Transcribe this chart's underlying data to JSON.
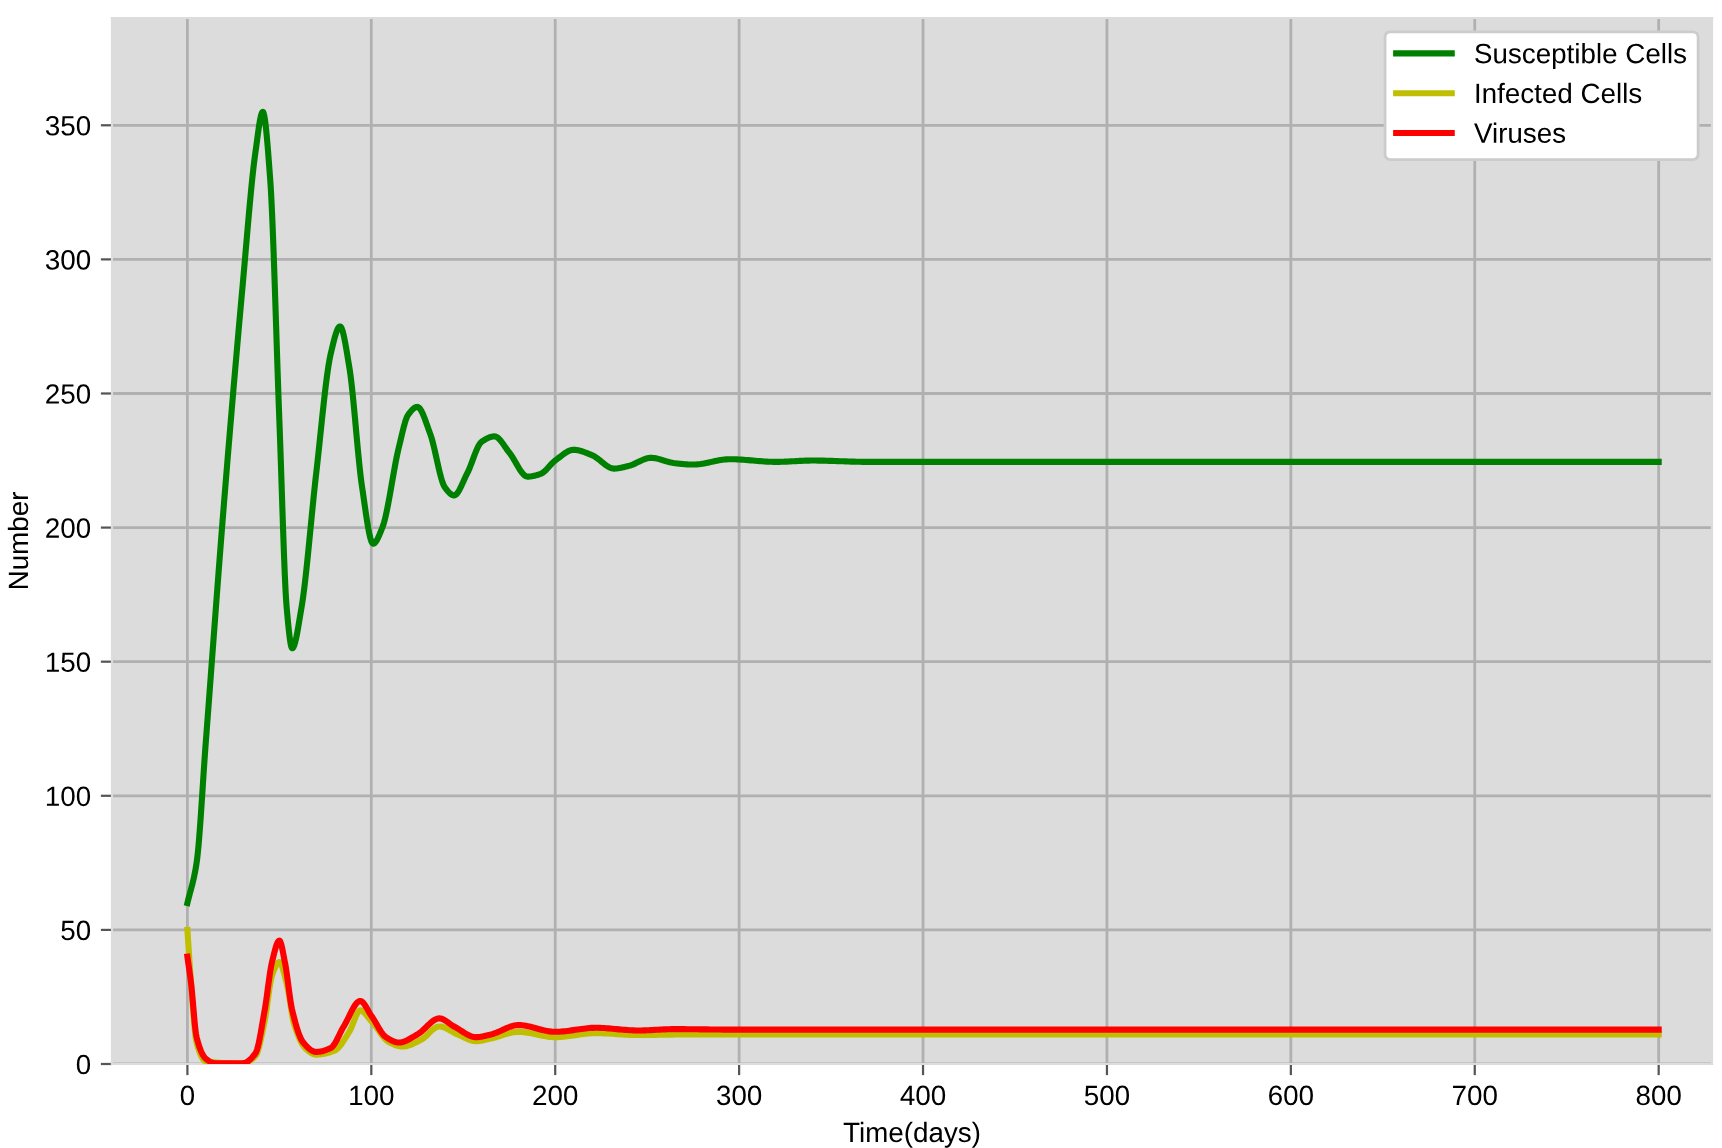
{
  "chart_data": {
    "type": "line",
    "xlabel": "Time(days)",
    "ylabel": "Number",
    "xlim": [
      -41,
      829
    ],
    "ylim": [
      0,
      390
    ],
    "xticks": [
      0,
      100,
      200,
      300,
      400,
      500,
      600,
      700,
      800
    ],
    "yticks": [
      0,
      50,
      100,
      150,
      200,
      250,
      300,
      350
    ],
    "grid": true,
    "legend": "top right",
    "series": [
      {
        "name": "Susceptible Cells",
        "color": "#008000",
        "x": [
          0,
          5,
          10,
          20,
          30,
          37,
          41,
          45,
          50,
          54,
          57,
          62,
          70,
          78,
          83,
          88,
          95,
          101,
          106,
          115,
          120,
          125,
          132,
          140,
          145,
          152,
          160,
          167,
          175,
          185,
          192,
          200,
          210,
          220,
          232,
          240,
          252,
          265,
          275,
          295,
          320,
          340,
          370,
          400,
          800
        ],
        "values": [
          60,
          75,
          120,
          210,
          290,
          340,
          355,
          330,
          240,
          170,
          155,
          170,
          220,
          265,
          275,
          260,
          215,
          194,
          200,
          230,
          242,
          245,
          235,
          215,
          212,
          220,
          232,
          234,
          228,
          219,
          220,
          225,
          229,
          227,
          222,
          223,
          226,
          224,
          223.5,
          225.5,
          224.5,
          225,
          224.5,
          224.5,
          224.5
        ]
      },
      {
        "name": "Infected Cells",
        "color": "#bfbf00",
        "x": [
          0,
          2,
          5,
          10,
          30,
          37,
          42,
          46,
          50,
          54,
          58,
          64,
          70,
          80,
          88,
          94,
          100,
          110,
          117,
          127,
          137,
          147,
          157,
          165,
          180,
          200,
          222,
          245,
          270,
          300,
          800
        ],
        "values": [
          50,
          30,
          8,
          1,
          0.2,
          3,
          16,
          33,
          38,
          30,
          15,
          6,
          3.5,
          5,
          12,
          20,
          16,
          8,
          6.5,
          9,
          14,
          11,
          8.5,
          9.5,
          12,
          10,
          11.5,
          10.8,
          11,
          11,
          11
        ]
      },
      {
        "name": "Viruses",
        "color": "#ff0000",
        "x": [
          0,
          2,
          5,
          10,
          15,
          30,
          37,
          42,
          46,
          50,
          53,
          57,
          63,
          70,
          78,
          85,
          94,
          100,
          108,
          115,
          125,
          137,
          145,
          157,
          165,
          180,
          200,
          222,
          245,
          265,
          300,
          800
        ],
        "values": [
          40,
          30,
          10,
          2,
          0.3,
          0.3,
          4,
          20,
          38,
          46,
          38,
          20,
          8,
          4.5,
          6,
          14,
          23.5,
          18,
          10,
          8,
          11,
          17,
          14,
          10,
          11,
          14.5,
          12,
          13.5,
          12.5,
          13,
          12.8,
          12.8
        ]
      }
    ]
  }
}
